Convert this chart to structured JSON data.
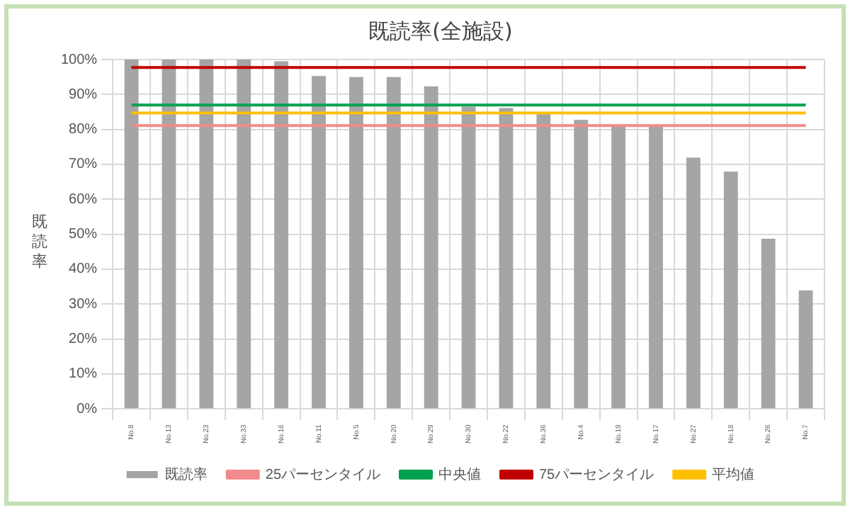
{
  "chart_data": {
    "type": "bar",
    "title": "既読率(全施設)",
    "ylabel": "既読率",
    "categories": [
      "No.8",
      "No.13",
      "No.23",
      "No.33",
      "No.16",
      "No.11",
      "No.5",
      "No.20",
      "No.29",
      "No.30",
      "No.22",
      "No.36",
      "No.4",
      "No.19",
      "No.17",
      "No.27",
      "No.18",
      "No.26",
      "No.7"
    ],
    "series": [
      {
        "name": "既読率",
        "color": "#a5a5a5",
        "values": [
          100,
          100,
          100,
          100,
          99.5,
          95.3,
          95,
          95,
          92.3,
          86.5,
          86.1,
          84.4,
          82.7,
          81.1,
          81,
          71.9,
          67.9,
          48.7,
          33.9
        ]
      },
      {
        "type": "line",
        "name": "25パーセンタイル",
        "color": "#f28b8b",
        "values": [
          81.1,
          81.1,
          81.1,
          81.1,
          81.1,
          81.1,
          81.1,
          81.1,
          81.1,
          81.1,
          81.1,
          81.1,
          81.1,
          81.1,
          81.1,
          81.1,
          81.1,
          81.1,
          81.1
        ]
      },
      {
        "type": "line",
        "name": "中央値",
        "color": "#00a050",
        "values": [
          87,
          87,
          87,
          87,
          87,
          87,
          87,
          87,
          87,
          87,
          87,
          87,
          87,
          87,
          87,
          87,
          87,
          87,
          87
        ]
      },
      {
        "type": "line",
        "name": "75パーセンタイル",
        "color": "#c00000",
        "values": [
          97.7,
          97.7,
          97.7,
          97.7,
          97.7,
          97.7,
          97.7,
          97.7,
          97.7,
          97.7,
          97.7,
          97.7,
          97.7,
          97.7,
          97.7,
          97.7,
          97.7,
          97.7,
          97.7
        ]
      },
      {
        "type": "line",
        "name": "平均値",
        "color": "#ffc000",
        "values": [
          84.7,
          84.7,
          84.7,
          84.7,
          84.7,
          84.7,
          84.7,
          84.7,
          84.7,
          84.7,
          84.7,
          84.7,
          84.7,
          84.7,
          84.7,
          84.7,
          84.7,
          84.7,
          84.7
        ]
      }
    ],
    "ylim": [
      0,
      100
    ],
    "yticks": [
      {
        "value": 0,
        "label": "0%"
      },
      {
        "value": 10,
        "label": "10%"
      },
      {
        "value": 20,
        "label": "20%"
      },
      {
        "value": 30,
        "label": "30%"
      },
      {
        "value": 40,
        "label": "40%"
      },
      {
        "value": 50,
        "label": "50%"
      },
      {
        "value": 60,
        "label": "60%"
      },
      {
        "value": 70,
        "label": "70%"
      },
      {
        "value": 80,
        "label": "80%"
      },
      {
        "value": 90,
        "label": "90%"
      },
      {
        "value": 100,
        "label": "100%"
      }
    ],
    "grid": true,
    "legend": "bottom",
    "marker": "none"
  }
}
